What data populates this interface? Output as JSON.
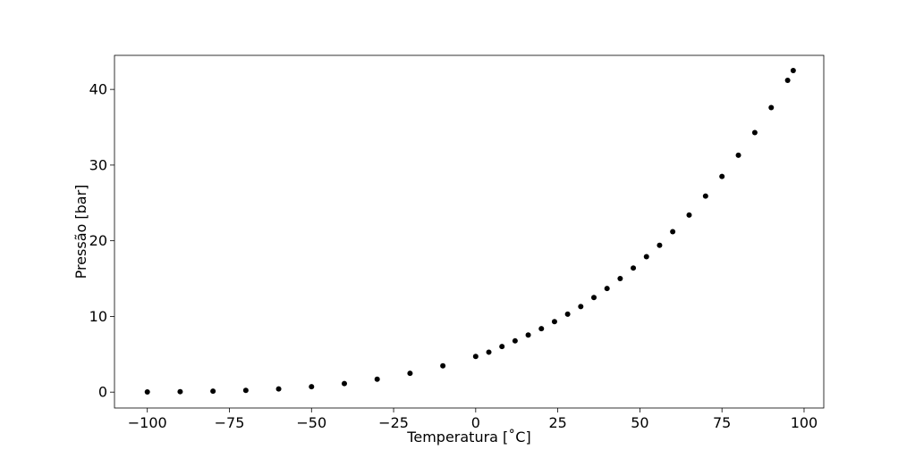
{
  "chart_data": {
    "type": "scatter",
    "xlabel": "Temperatura [˚C]",
    "ylabel": "Pressão [bar]",
    "xlim": [
      -110,
      106
    ],
    "ylim": [
      -2.1,
      44.5
    ],
    "xticks": [
      -100,
      -75,
      -50,
      -25,
      0,
      25,
      50,
      75,
      100
    ],
    "xtick_labels": [
      "−100",
      "−75",
      "−50",
      "−25",
      "0",
      "25",
      "50",
      "75",
      "100"
    ],
    "yticks": [
      0,
      10,
      20,
      30,
      40
    ],
    "ytick_labels": [
      "0",
      "10",
      "20",
      "30",
      "40"
    ],
    "grid": false,
    "marker_color": "#000000",
    "series": [
      {
        "points": [
          [
            -100,
            0.03
          ],
          [
            -90,
            0.06
          ],
          [
            -80,
            0.12
          ],
          [
            -70,
            0.23
          ],
          [
            -60,
            0.42
          ],
          [
            -50,
            0.71
          ],
          [
            -40,
            1.13
          ],
          [
            -30,
            1.71
          ],
          [
            -20,
            2.48
          ],
          [
            -10,
            3.47
          ],
          [
            0,
            4.71
          ],
          [
            4,
            5.28
          ],
          [
            8,
            6.03
          ],
          [
            12,
            6.77
          ],
          [
            16,
            7.55
          ],
          [
            20,
            8.38
          ],
          [
            24,
            9.32
          ],
          [
            28,
            10.3
          ],
          [
            32,
            11.3
          ],
          [
            36,
            12.5
          ],
          [
            40,
            13.7
          ],
          [
            44,
            15.0
          ],
          [
            48,
            16.4
          ],
          [
            52,
            17.9
          ],
          [
            56,
            19.4
          ],
          [
            60,
            21.2
          ],
          [
            65,
            23.4
          ],
          [
            70,
            25.9
          ],
          [
            75,
            28.5
          ],
          [
            80,
            31.3
          ],
          [
            85,
            34.3
          ],
          [
            90,
            37.6
          ],
          [
            95,
            41.2
          ],
          [
            96.7,
            42.5
          ]
        ]
      }
    ]
  }
}
